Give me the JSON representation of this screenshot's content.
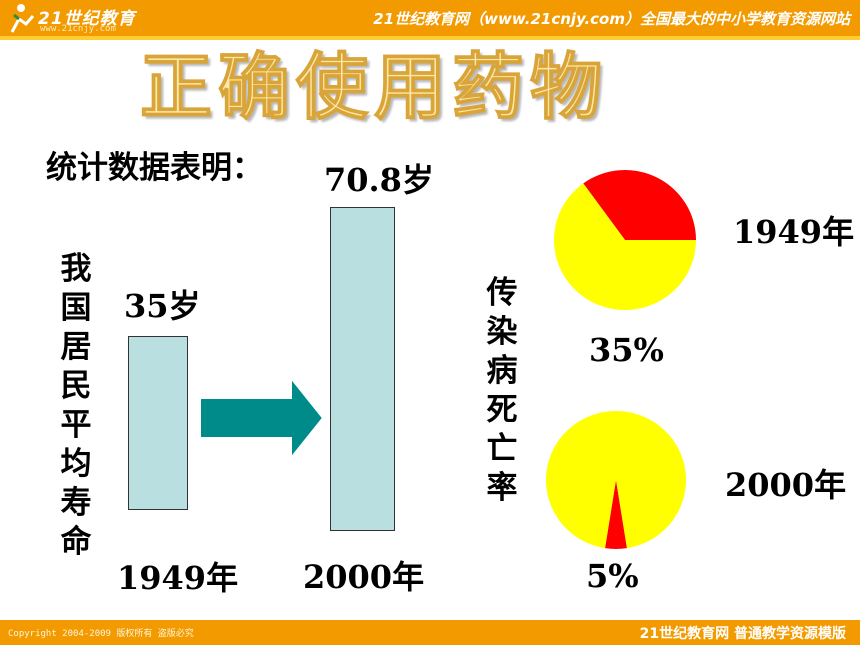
{
  "header": {
    "logo_text": "21世纪教育",
    "logo_url_text": "www.21cnjy.com",
    "site_text": "21世纪教育网（www.21cnjy.com）全国最大的中小学教育资源网站"
  },
  "slide": {
    "title": "正确使用药物",
    "subtitle": "统计数据表明：",
    "life_axis_label": "我国居民平均寿命",
    "death_axis_label": "传染病死亡率"
  },
  "chart_data": [
    {
      "type": "bar",
      "title": "",
      "categories": [
        "1949年",
        "2000年"
      ],
      "values": [
        35,
        70.8
      ],
      "value_labels": [
        "35岁",
        "70.8岁"
      ],
      "ylabel": "我国居民平均寿命",
      "colors": {
        "bar": "#b9dfe0",
        "arrow": "#008b8b"
      }
    },
    {
      "type": "pie",
      "title": "1949年",
      "label": "35%",
      "slices": [
        {
          "name": "传染病",
          "value": 35,
          "color": "#ff0000"
        },
        {
          "name": "",
          "value": 65,
          "color": "#ffff00"
        }
      ]
    },
    {
      "type": "pie",
      "title": "2000年",
      "label": "5%",
      "slices": [
        {
          "name": "传染病",
          "value": 5,
          "color": "#ff0000"
        },
        {
          "name": "",
          "value": 95,
          "color": "#ffff00"
        }
      ]
    }
  ],
  "footer": {
    "copyright": "Copyright 2004-2009 版权所有 盗版必究",
    "brand": "21世纪教育网    普通教学资源模版"
  }
}
